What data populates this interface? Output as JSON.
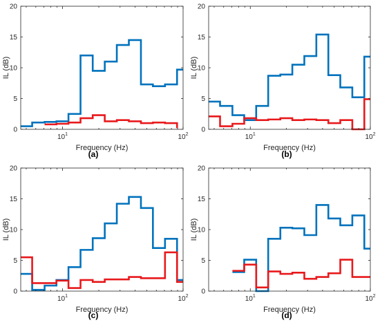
{
  "chart_data": [
    {
      "type": "line",
      "panel_label": "(a)",
      "xlabel": "Frequency (Hz)",
      "ylabel": "IL (dB)",
      "xscale": "log",
      "xlim": [
        4.5,
        100
      ],
      "ylim": [
        0,
        20
      ],
      "yticks": [
        0,
        5,
        10,
        15,
        20
      ],
      "xticks": [
        {
          "value": 10,
          "base": "10",
          "exp": "1"
        },
        {
          "value": 100,
          "base": "10",
          "exp": "2"
        }
      ],
      "series": [
        {
          "color": "#0072bd",
          "drawstyle": "steps",
          "edges": [
            4.5,
            5.6,
            7.1,
            8.9,
            11.2,
            14.1,
            17.8,
            22.4,
            28.2,
            35.5,
            44.7,
            56.2,
            70.8,
            89.1,
            100
          ],
          "values": [
            0.5,
            1.1,
            1.2,
            1.3,
            2.5,
            12.0,
            9.5,
            11.0,
            13.7,
            14.5,
            7.3,
            7.0,
            7.3,
            9.7
          ]
        },
        {
          "color": "#e8191c",
          "drawstyle": "steps",
          "edges": [
            7.1,
            8.9,
            11.2,
            14.1,
            17.8,
            22.4,
            28.2,
            35.5,
            44.7,
            56.2,
            70.8,
            89.1
          ],
          "values": [
            0.8,
            0.9,
            1.1,
            1.8,
            2.3,
            1.3,
            1.5,
            1.3,
            1.0,
            1.1,
            1.0,
            0.2
          ]
        }
      ]
    },
    {
      "type": "line",
      "panel_label": "(b)",
      "xlabel": "Frequency (Hz)",
      "ylabel": "IL (dB)",
      "xscale": "log",
      "xlim": [
        4.5,
        100
      ],
      "ylim": [
        0,
        20
      ],
      "yticks": [
        0,
        5,
        10,
        15,
        20
      ],
      "xticks": [
        {
          "value": 10,
          "base": "10",
          "exp": "1"
        },
        {
          "value": 100,
          "base": "10",
          "exp": "2"
        }
      ],
      "series": [
        {
          "color": "#0072bd",
          "drawstyle": "steps",
          "edges": [
            4.5,
            5.6,
            7.1,
            8.9,
            11.2,
            14.1,
            17.8,
            22.4,
            28.2,
            35.5,
            44.7,
            56.2,
            70.8,
            89.1,
            100
          ],
          "values": [
            4.5,
            3.8,
            2.3,
            1.5,
            3.8,
            8.7,
            8.9,
            10.5,
            11.9,
            15.4,
            8.8,
            6.8,
            5.2,
            11.8
          ]
        },
        {
          "color": "#e8191c",
          "drawstyle": "steps",
          "edges": [
            4.5,
            5.6,
            7.1,
            8.9,
            11.2,
            14.1,
            17.8,
            22.4,
            28.2,
            35.5,
            44.7,
            56.2,
            70.8,
            89.1,
            100
          ],
          "values": [
            2.1,
            0.5,
            0.9,
            1.8,
            1.5,
            1.6,
            1.8,
            1.5,
            1.6,
            1.5,
            1.0,
            1.5,
            0.0,
            4.9
          ]
        }
      ]
    },
    {
      "type": "line",
      "panel_label": "(c)",
      "xlabel": "Frequency (Hz)",
      "ylabel": "IL (dB)",
      "xscale": "log",
      "xlim": [
        4.5,
        100
      ],
      "ylim": [
        0,
        20
      ],
      "yticks": [
        0,
        5,
        10,
        15,
        20
      ],
      "xticks": [
        {
          "value": 10,
          "base": "10",
          "exp": "1"
        },
        {
          "value": 100,
          "base": "10",
          "exp": "2"
        }
      ],
      "series": [
        {
          "color": "#0072bd",
          "drawstyle": "steps",
          "edges": [
            4.5,
            5.6,
            7.1,
            8.9,
            11.2,
            14.1,
            17.8,
            22.4,
            28.2,
            35.5,
            44.7,
            56.2,
            70.8,
            89.1,
            100
          ],
          "values": [
            2.8,
            0.2,
            0.9,
            1.8,
            3.9,
            6.7,
            8.6,
            11.0,
            14.2,
            15.3,
            13.5,
            7.0,
            8.5,
            1.8
          ]
        },
        {
          "color": "#e8191c",
          "drawstyle": "steps",
          "edges": [
            4.5,
            5.6,
            7.1,
            8.9,
            11.2,
            14.1,
            17.8,
            22.4,
            28.2,
            35.5,
            44.7,
            56.2,
            70.8,
            89.1,
            100
          ],
          "values": [
            5.5,
            1.3,
            1.3,
            1.7,
            0.5,
            1.8,
            1.5,
            1.9,
            1.9,
            2.3,
            2.1,
            2.1,
            6.3,
            1.5
          ]
        }
      ]
    },
    {
      "type": "line",
      "panel_label": "(d)",
      "xlabel": "Frequency (Hz)",
      "ylabel": "IL (dB)",
      "xscale": "log",
      "xlim": [
        4.5,
        100
      ],
      "ylim": [
        0,
        20
      ],
      "yticks": [
        0,
        5,
        10,
        15,
        20
      ],
      "xticks": [
        {
          "value": 10,
          "base": "10",
          "exp": "1"
        },
        {
          "value": 100,
          "base": "10",
          "exp": "2"
        }
      ],
      "series": [
        {
          "color": "#0072bd",
          "drawstyle": "steps",
          "edges": [
            7.1,
            8.9,
            11.2,
            14.1,
            17.8,
            22.4,
            28.2,
            35.5,
            44.7,
            56.2,
            70.8,
            89.1,
            100
          ],
          "values": [
            3.1,
            5.1,
            0.0,
            8.5,
            10.3,
            10.2,
            9.1,
            14.0,
            11.8,
            10.7,
            12.3,
            6.9
          ]
        },
        {
          "color": "#e8191c",
          "drawstyle": "steps",
          "edges": [
            7.1,
            8.9,
            11.2,
            14.1,
            17.8,
            22.4,
            28.2,
            35.5,
            44.7,
            56.2,
            70.8,
            89.1,
            100
          ],
          "values": [
            3.3,
            4.3,
            0.6,
            3.2,
            2.8,
            3.0,
            2.0,
            2.3,
            2.9,
            5.1,
            2.3,
            2.3
          ]
        }
      ]
    }
  ]
}
